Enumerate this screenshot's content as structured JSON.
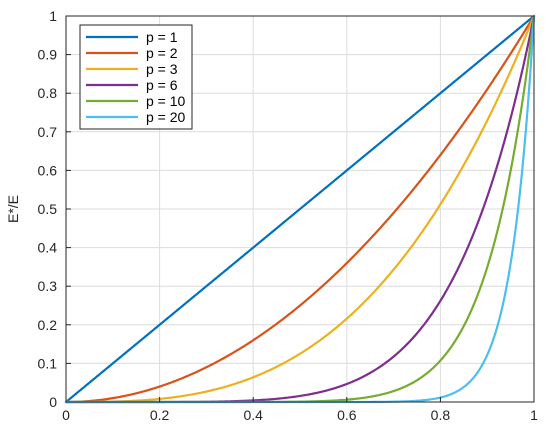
{
  "chart_data": {
    "type": "line",
    "title": "",
    "xlabel": "",
    "ylabel": "E*/E",
    "xlim": [
      0,
      1
    ],
    "ylim": [
      0,
      1
    ],
    "xticks": [
      0,
      0.2,
      0.4,
      0.6,
      0.8,
      1
    ],
    "yticks": [
      0,
      0.1,
      0.2,
      0.3,
      0.4,
      0.5,
      0.6,
      0.7,
      0.8,
      0.9,
      1
    ],
    "xtick_labels": [
      "0",
      "0.2",
      "0.4",
      "0.6",
      "0.8",
      "1"
    ],
    "ytick_labels": [
      "0",
      "0.1",
      "0.2",
      "0.3",
      "0.4",
      "0.5",
      "0.6",
      "0.7",
      "0.8",
      "0.9",
      "1"
    ],
    "grid": true,
    "legend_position": "top-left",
    "function": "y = x^p",
    "series": [
      {
        "name": "p = 1",
        "exponent": 1,
        "color": "#0072BD"
      },
      {
        "name": "p = 2",
        "exponent": 2,
        "color": "#D95319"
      },
      {
        "name": "p = 3",
        "exponent": 3,
        "color": "#EDB120"
      },
      {
        "name": "p = 6",
        "exponent": 6,
        "color": "#7E2F8E"
      },
      {
        "name": "p = 10",
        "exponent": 10,
        "color": "#77AC30"
      },
      {
        "name": "p = 20",
        "exponent": 20,
        "color": "#4DBEEE"
      }
    ]
  }
}
